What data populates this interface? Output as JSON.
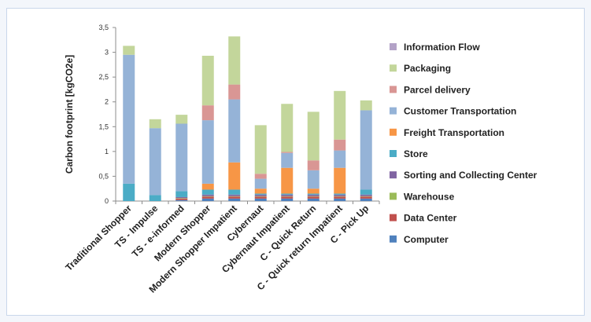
{
  "chart_data": {
    "type": "bar",
    "stacked": true,
    "title": "",
    "xlabel": "",
    "ylabel": "Carbon footprint [kgCO2e]",
    "ylim": [
      0,
      3.5
    ],
    "yticks": [
      "0",
      "0,5",
      "1",
      "1,5",
      "2",
      "2,5",
      "3",
      "3,5"
    ],
    "grid": false,
    "legend_position": "right",
    "categories": [
      "Traditional Shopper",
      "TS - Impulse",
      "TS - e-informed",
      "Modern Shopper",
      "Modern Shopper Impatient",
      "Cybernaut",
      "Cybernaut Impatient",
      "C - Quick Return",
      "C - Quick return Impatient",
      "C - Pick Up"
    ],
    "series": [
      {
        "name": "Computer",
        "color": "#4f81bd",
        "values": [
          0,
          0,
          0.02,
          0.05,
          0.05,
          0.05,
          0.05,
          0.05,
          0.05,
          0.05
        ]
      },
      {
        "name": "Data Center",
        "color": "#c0504d",
        "values": [
          0,
          0,
          0.03,
          0.04,
          0.04,
          0.04,
          0.04,
          0.04,
          0.04,
          0.04
        ]
      },
      {
        "name": "Warehouse",
        "color": "#9bbb59",
        "values": [
          0,
          0,
          0.01,
          0.01,
          0.01,
          0.01,
          0.01,
          0.01,
          0.01,
          0.01
        ]
      },
      {
        "name": "Sorting and Collecting Center",
        "color": "#8064a2",
        "values": [
          0,
          0,
          0.02,
          0.03,
          0.03,
          0.03,
          0.03,
          0.03,
          0.03,
          0.03
        ]
      },
      {
        "name": "Store",
        "color": "#4bacc6",
        "values": [
          0.35,
          0.12,
          0.12,
          0.1,
          0.1,
          0.02,
          0.02,
          0.02,
          0.02,
          0.1
        ]
      },
      {
        "name": "Freight Transportation",
        "color": "#f79646",
        "values": [
          0,
          0,
          0,
          0.12,
          0.55,
          0.1,
          0.52,
          0.1,
          0.52,
          0
        ]
      },
      {
        "name": "Customer Transportation",
        "color": "#95b3d7",
        "values": [
          2.6,
          1.35,
          1.36,
          1.28,
          1.27,
          0.2,
          0.3,
          0.37,
          0.35,
          1.6
        ]
      },
      {
        "name": "Parcel delivery",
        "color": "#d99694",
        "values": [
          0,
          0,
          0,
          0.3,
          0.3,
          0.1,
          0.02,
          0.2,
          0.22,
          0
        ]
      },
      {
        "name": "Packaging",
        "color": "#c3d69b",
        "values": [
          0.18,
          0.18,
          0.18,
          1.0,
          0.97,
          0.98,
          0.97,
          0.98,
          0.98,
          0.2
        ]
      },
      {
        "name": "Information Flow",
        "color": "#b3a2c7",
        "values": [
          0,
          0,
          0,
          0,
          0,
          0,
          0,
          0,
          0,
          0
        ]
      }
    ],
    "legend_order": [
      "Information Flow",
      "Packaging",
      "Parcel delivery",
      "Customer Transportation",
      "Freight Transportation",
      "Store",
      "Sorting and Collecting Center",
      "Warehouse",
      "Data Center",
      "Computer"
    ]
  }
}
